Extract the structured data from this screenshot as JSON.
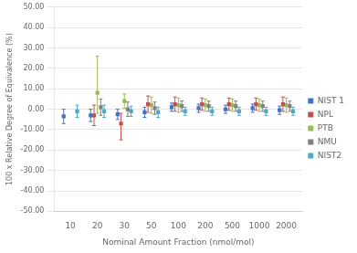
{
  "chart_data": {
    "type": "scatter",
    "xlabel": "Nominal Amount Fraction (nmol/mol)",
    "ylabel": "100 x Relative Degree of Equivalence (%)",
    "categories": [
      "10",
      "20",
      "30",
      "50",
      "100",
      "200",
      "500",
      "1000",
      "2000"
    ],
    "ylim": [
      -50,
      50
    ],
    "yticks": [
      {
        "value": -50,
        "label": "-50.00"
      },
      {
        "value": -40,
        "label": "-40.00"
      },
      {
        "value": -30,
        "label": "-30.00"
      },
      {
        "value": -20,
        "label": "-20.00"
      },
      {
        "value": -10,
        "label": "-10.00"
      },
      {
        "value": 0,
        "label": "0.00"
      },
      {
        "value": 10,
        "label": "10.00"
      },
      {
        "value": 20,
        "label": "20.00"
      },
      {
        "value": 30,
        "label": "30.00"
      },
      {
        "value": 40,
        "label": "40.00"
      },
      {
        "value": 50,
        "label": "50.00"
      }
    ],
    "grid": true,
    "legend": "right",
    "series": [
      {
        "name": "NIST 1",
        "color": "#4472C4",
        "marker": "square",
        "values": [
          -3.5,
          -3.0,
          -2.5,
          -1.5,
          1.0,
          0.5,
          0.0,
          0.5,
          -0.5
        ],
        "yerr_lo": [
          3.5,
          3.0,
          2.5,
          2.5,
          2.0,
          2.0,
          2.0,
          2.0,
          2.0
        ],
        "yerr_hi": [
          3.5,
          3.0,
          2.5,
          2.5,
          2.0,
          2.0,
          2.0,
          2.0,
          2.0
        ]
      },
      {
        "name": "NPL",
        "color": "#C0504D",
        "marker": "square",
        "values": [
          null,
          -3.0,
          -7.0,
          2.5,
          2.5,
          2.5,
          2.5,
          2.5,
          2.5
        ],
        "yerr_lo": [
          null,
          5.0,
          8.0,
          4.0,
          3.5,
          3.0,
          3.0,
          3.0,
          3.5
        ],
        "yerr_hi": [
          null,
          5.0,
          5.0,
          4.0,
          3.5,
          3.0,
          3.0,
          3.0,
          3.5
        ]
      },
      {
        "name": "PTB",
        "color": "#9BBB59",
        "marker": "square",
        "values": [
          null,
          8.0,
          4.0,
          2.0,
          2.0,
          2.0,
          2.0,
          2.0,
          2.0
        ],
        "yerr_lo": [
          null,
          10.0,
          3.5,
          4.0,
          3.5,
          3.0,
          3.0,
          3.0,
          3.5
        ],
        "yerr_hi": [
          null,
          18.0,
          3.5,
          4.0,
          3.5,
          3.0,
          3.0,
          3.0,
          3.5
        ]
      },
      {
        "name": "NMU",
        "color": "#808080",
        "marker": "square",
        "values": [
          null,
          1.0,
          0.0,
          0.5,
          1.5,
          1.5,
          1.5,
          1.5,
          1.5
        ],
        "yerr_lo": [
          null,
          4.0,
          3.5,
          3.0,
          2.5,
          2.5,
          2.5,
          2.5,
          2.5
        ],
        "yerr_hi": [
          null,
          4.0,
          3.5,
          3.0,
          2.5,
          2.5,
          2.5,
          2.5,
          2.5
        ]
      },
      {
        "name": "NIST2",
        "color": "#4BACC6",
        "marker": "square",
        "values": [
          -1.0,
          -1.0,
          -1.0,
          -1.5,
          -1.0,
          -1.0,
          -1.0,
          -1.0,
          -1.0
        ],
        "yerr_lo": [
          3.0,
          3.0,
          2.5,
          2.5,
          2.0,
          2.0,
          2.0,
          2.0,
          2.0
        ],
        "yerr_hi": [
          3.0,
          3.0,
          2.5,
          2.5,
          2.0,
          2.0,
          2.0,
          2.0,
          2.0
        ]
      }
    ]
  }
}
